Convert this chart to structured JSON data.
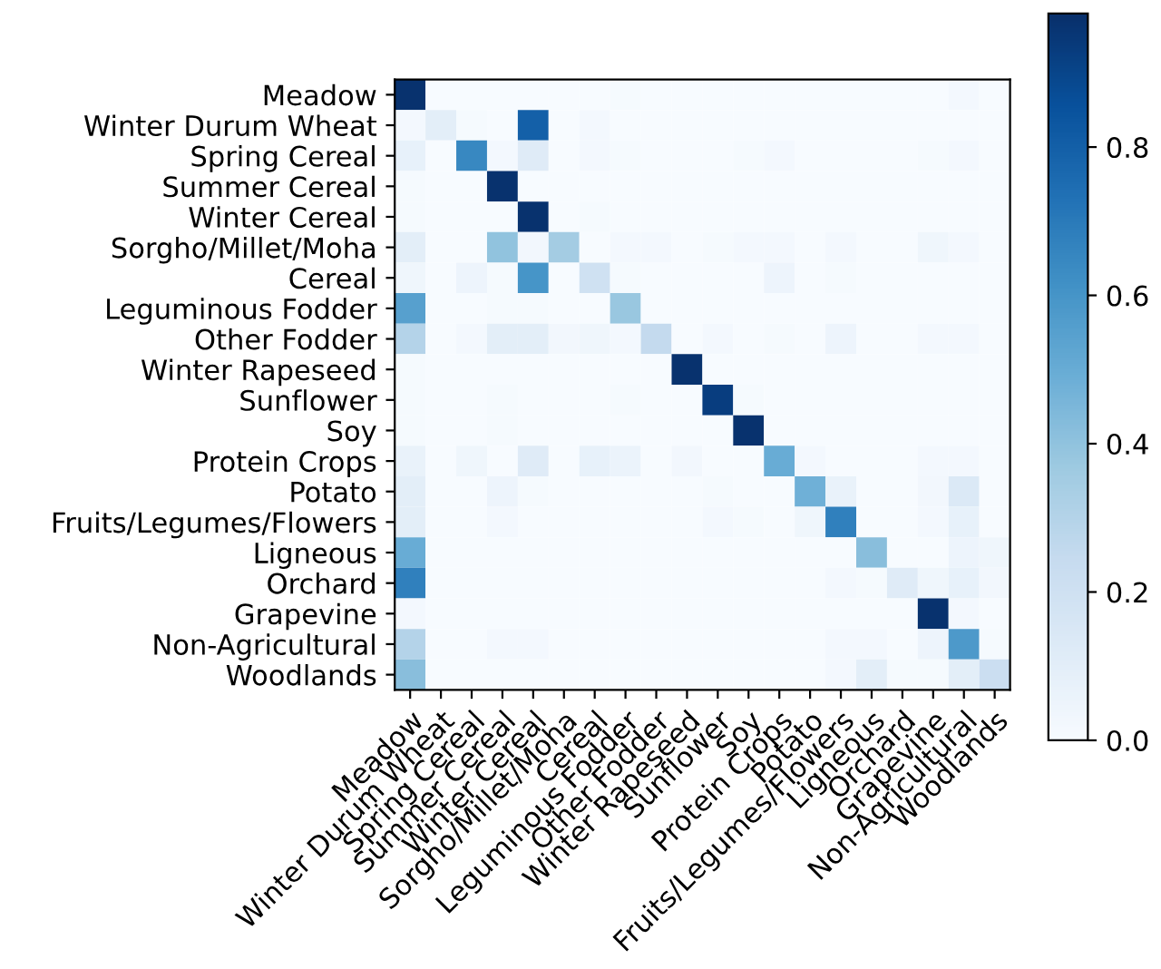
{
  "chart_data": {
    "type": "heatmap",
    "categories": [
      "Meadow",
      "Winter Durum Wheat",
      "Spring Cereal",
      "Summer Cereal",
      "Winter Cereal",
      "Sorgho/Millet/Moha",
      "Cereal",
      "Leguminous Fodder",
      "Other Fodder",
      "Winter Rapeseed",
      "Sunflower",
      "Soy",
      "Protein Crops",
      "Potato",
      "Fruits/Legumes/Flowers",
      "Ligneous",
      "Orchard",
      "Grapevine",
      "Non-Agricultural",
      "Woodlands"
    ],
    "y_categories": [
      "Meadow",
      "Winter Durum Wheat",
      "Spring Cereal",
      "Summer Cereal",
      "Winter Cereal",
      "Sorgho/Millet/Moha",
      "Cereal",
      "Leguminous Fodder",
      "Other Fodder",
      "Winter Rapeseed",
      "Sunflower",
      "Soy",
      "Protein Crops",
      "Potato",
      "Fruits/Legumes/Flowers",
      "Ligneous",
      "Orchard",
      "Grapevine",
      "Non-Agricultural",
      "Woodlands"
    ],
    "cells": [
      [
        0.97,
        0,
        0,
        0,
        0,
        0,
        0,
        0.01,
        0,
        0,
        0,
        0,
        0,
        0,
        0,
        0,
        0,
        0,
        0.02,
        0
      ],
      [
        0.02,
        0.1,
        0.01,
        0,
        0.8,
        0,
        0.02,
        0,
        0,
        0,
        0,
        0,
        0,
        0,
        0,
        0,
        0,
        0,
        0,
        0
      ],
      [
        0.08,
        0,
        0.65,
        0.02,
        0.12,
        0,
        0.02,
        0.01,
        0,
        0,
        0,
        0.01,
        0.02,
        0,
        0,
        0,
        0,
        0.01,
        0.02,
        0
      ],
      [
        0.01,
        0,
        0,
        0.97,
        0,
        0,
        0,
        0,
        0,
        0,
        0,
        0,
        0,
        0,
        0,
        0,
        0,
        0,
        0,
        0
      ],
      [
        0.01,
        0,
        0,
        0,
        0.97,
        0,
        0.01,
        0,
        0,
        0,
        0,
        0,
        0,
        0,
        0,
        0,
        0,
        0,
        0,
        0
      ],
      [
        0.1,
        0,
        0,
        0.4,
        0.03,
        0.35,
        0,
        0.02,
        0.02,
        0,
        0.01,
        0.02,
        0.02,
        0,
        0.02,
        0,
        0,
        0.04,
        0.02,
        0
      ],
      [
        0.04,
        0,
        0.05,
        0.01,
        0.6,
        0,
        0.2,
        0.01,
        0,
        0,
        0,
        0,
        0.05,
        0,
        0.01,
        0,
        0,
        0,
        0,
        0
      ],
      [
        0.55,
        0,
        0,
        0.01,
        0.01,
        0,
        0,
        0.38,
        0,
        0,
        0,
        0,
        0,
        0,
        0,
        0,
        0,
        0,
        0,
        0
      ],
      [
        0.3,
        0,
        0.02,
        0.1,
        0.1,
        0.03,
        0.04,
        0.02,
        0.25,
        0,
        0.02,
        0,
        0.01,
        0,
        0.05,
        0,
        0,
        0.02,
        0.02,
        0
      ],
      [
        0.01,
        0,
        0,
        0,
        0,
        0,
        0,
        0,
        0,
        0.97,
        0,
        0,
        0,
        0,
        0,
        0,
        0,
        0,
        0,
        0
      ],
      [
        0.01,
        0,
        0,
        0.01,
        0,
        0,
        0,
        0.01,
        0,
        0,
        0.93,
        0.01,
        0,
        0,
        0,
        0,
        0,
        0,
        0,
        0
      ],
      [
        0.01,
        0,
        0,
        0.01,
        0,
        0,
        0,
        0,
        0,
        0,
        0,
        0.97,
        0,
        0,
        0,
        0,
        0,
        0,
        0,
        0
      ],
      [
        0.07,
        0,
        0.04,
        0,
        0.12,
        0,
        0.08,
        0.06,
        0,
        0.03,
        0,
        0,
        0.5,
        0.02,
        0,
        0,
        0,
        0.02,
        0.02,
        0
      ],
      [
        0.1,
        0,
        0,
        0.05,
        0.01,
        0,
        0,
        0,
        0,
        0,
        0.01,
        0,
        0,
        0.48,
        0.07,
        0,
        0,
        0.03,
        0.14,
        0
      ],
      [
        0.1,
        0,
        0,
        0.02,
        0,
        0,
        0,
        0,
        0,
        0,
        0.02,
        0.01,
        0,
        0.04,
        0.68,
        0,
        0,
        0.02,
        0.08,
        0
      ],
      [
        0.5,
        0,
        0,
        0,
        0,
        0,
        0,
        0,
        0,
        0,
        0,
        0,
        0,
        0,
        0,
        0.42,
        0,
        0,
        0.05,
        0.04
      ],
      [
        0.68,
        0,
        0,
        0,
        0,
        0,
        0,
        0,
        0,
        0,
        0,
        0,
        0,
        0,
        0.02,
        0.01,
        0.12,
        0.04,
        0.08,
        0.03
      ],
      [
        0.02,
        0,
        0,
        0,
        0,
        0,
        0,
        0,
        0,
        0,
        0,
        0,
        0,
        0,
        0,
        0,
        0,
        0.97,
        0.02,
        0
      ],
      [
        0.3,
        0,
        0,
        0.02,
        0.02,
        0,
        0,
        0,
        0,
        0,
        0,
        0,
        0,
        0,
        0.02,
        0.02,
        0,
        0.05,
        0.58,
        0.01
      ],
      [
        0.42,
        0,
        0,
        0,
        0,
        0,
        0,
        0,
        0,
        0,
        0,
        0,
        0,
        0,
        0.02,
        0.1,
        0.01,
        0.01,
        0.1,
        0.22
      ]
    ],
    "clim": [
      0,
      0.98
    ],
    "cticks": [
      {
        "value": 0,
        "label": "0.0"
      },
      0.2,
      0.4,
      0.6,
      0.8
    ]
  }
}
